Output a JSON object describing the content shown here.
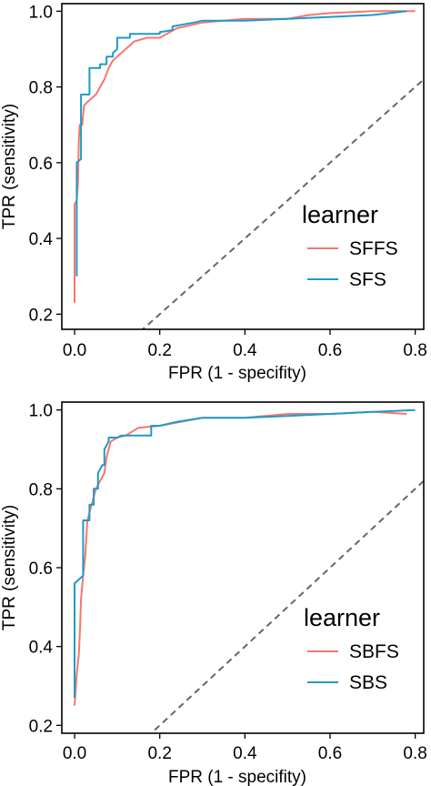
{
  "chart_data": [
    {
      "type": "line",
      "xlabel": "FPR (1 - specifity)",
      "ylabel": "TPR (sensitivity)",
      "xlim": [
        -0.03,
        0.82
      ],
      "ylim": [
        0.16,
        1.02
      ],
      "xticks": [
        "0.0",
        "0.2",
        "0.4",
        "0.6",
        "0.8"
      ],
      "yticks": [
        "0.2",
        "0.4",
        "0.6",
        "0.8",
        "1.0"
      ],
      "grid": false,
      "legend": {
        "title": "learner",
        "position": "right"
      },
      "reference_line": {
        "style": "dashed",
        "from": [
          0,
          0
        ],
        "to": [
          1,
          1
        ]
      },
      "series": [
        {
          "name": "SFFS",
          "color": "#F8766D",
          "points": [
            [
              0.0,
              0.23
            ],
            [
              0.0,
              0.49
            ],
            [
              0.005,
              0.5
            ],
            [
              0.008,
              0.55
            ],
            [
              0.01,
              0.66
            ],
            [
              0.012,
              0.7
            ],
            [
              0.018,
              0.7
            ],
            [
              0.022,
              0.75
            ],
            [
              0.03,
              0.76
            ],
            [
              0.04,
              0.77
            ],
            [
              0.05,
              0.78
            ],
            [
              0.06,
              0.8
            ],
            [
              0.07,
              0.82
            ],
            [
              0.08,
              0.85
            ],
            [
              0.09,
              0.87
            ],
            [
              0.1,
              0.88
            ],
            [
              0.12,
              0.9
            ],
            [
              0.14,
              0.92
            ],
            [
              0.17,
              0.93
            ],
            [
              0.2,
              0.93
            ],
            [
              0.24,
              0.955
            ],
            [
              0.3,
              0.97
            ],
            [
              0.4,
              0.98
            ],
            [
              0.5,
              0.98
            ],
            [
              0.55,
              0.99
            ],
            [
              0.6,
              0.995
            ],
            [
              0.7,
              1.0
            ],
            [
              0.8,
              1.0
            ]
          ]
        },
        {
          "name": "SFS",
          "color": "#1F9AC9",
          "points": [
            [
              0.005,
              0.3
            ],
            [
              0.005,
              0.6
            ],
            [
              0.015,
              0.61
            ],
            [
              0.015,
              0.78
            ],
            [
              0.035,
              0.78
            ],
            [
              0.035,
              0.85
            ],
            [
              0.06,
              0.85
            ],
            [
              0.06,
              0.86
            ],
            [
              0.075,
              0.86
            ],
            [
              0.075,
              0.88
            ],
            [
              0.09,
              0.88
            ],
            [
              0.09,
              0.89
            ],
            [
              0.1,
              0.9
            ],
            [
              0.1,
              0.93
            ],
            [
              0.13,
              0.93
            ],
            [
              0.13,
              0.94
            ],
            [
              0.2,
              0.94
            ],
            [
              0.2,
              0.945
            ],
            [
              0.23,
              0.95
            ],
            [
              0.23,
              0.96
            ],
            [
              0.28,
              0.97
            ],
            [
              0.3,
              0.975
            ],
            [
              0.4,
              0.975
            ],
            [
              0.5,
              0.98
            ],
            [
              0.6,
              0.985
            ],
            [
              0.7,
              0.99
            ],
            [
              0.78,
              1.0
            ]
          ]
        }
      ]
    },
    {
      "type": "line",
      "xlabel": "FPR (1 - specifity)",
      "ylabel": "TPR (sensitivity)",
      "xlim": [
        -0.03,
        0.82
      ],
      "ylim": [
        0.18,
        1.02
      ],
      "xticks": [
        "0.0",
        "0.2",
        "0.4",
        "0.6",
        "0.8"
      ],
      "yticks": [
        "0.2",
        "0.4",
        "0.6",
        "0.8",
        "1.0"
      ],
      "grid": false,
      "legend": {
        "title": "learner",
        "position": "right"
      },
      "reference_line": {
        "style": "dashed",
        "from": [
          0,
          0
        ],
        "to": [
          1,
          1
        ]
      },
      "series": [
        {
          "name": "SBFS",
          "color": "#F8766D",
          "points": [
            [
              0.0,
              0.25
            ],
            [
              0.005,
              0.33
            ],
            [
              0.01,
              0.38
            ],
            [
              0.013,
              0.45
            ],
            [
              0.015,
              0.52
            ],
            [
              0.02,
              0.58
            ],
            [
              0.025,
              0.63
            ],
            [
              0.03,
              0.72
            ],
            [
              0.04,
              0.76
            ],
            [
              0.05,
              0.8
            ],
            [
              0.06,
              0.82
            ],
            [
              0.07,
              0.84
            ],
            [
              0.075,
              0.88
            ],
            [
              0.085,
              0.92
            ],
            [
              0.1,
              0.93
            ],
            [
              0.12,
              0.935
            ],
            [
              0.15,
              0.955
            ],
            [
              0.2,
              0.96
            ],
            [
              0.25,
              0.97
            ],
            [
              0.3,
              0.98
            ],
            [
              0.4,
              0.98
            ],
            [
              0.5,
              0.99
            ],
            [
              0.6,
              0.99
            ],
            [
              0.7,
              0.995
            ],
            [
              0.78,
              0.99
            ]
          ]
        },
        {
          "name": "SBS",
          "color": "#1F9AC9",
          "points": [
            [
              0.0,
              0.27
            ],
            [
              0.0,
              0.56
            ],
            [
              0.02,
              0.58
            ],
            [
              0.02,
              0.72
            ],
            [
              0.035,
              0.72
            ],
            [
              0.035,
              0.76
            ],
            [
              0.045,
              0.76
            ],
            [
              0.045,
              0.8
            ],
            [
              0.055,
              0.8
            ],
            [
              0.055,
              0.84
            ],
            [
              0.065,
              0.86
            ],
            [
              0.07,
              0.86
            ],
            [
              0.07,
              0.9
            ],
            [
              0.08,
              0.92
            ],
            [
              0.08,
              0.93
            ],
            [
              0.1,
              0.93
            ],
            [
              0.11,
              0.935
            ],
            [
              0.18,
              0.935
            ],
            [
              0.18,
              0.96
            ],
            [
              0.2,
              0.96
            ],
            [
              0.24,
              0.97
            ],
            [
              0.3,
              0.98
            ],
            [
              0.4,
              0.98
            ],
            [
              0.5,
              0.985
            ],
            [
              0.6,
              0.99
            ],
            [
              0.7,
              0.995
            ],
            [
              0.8,
              1.0
            ]
          ]
        }
      ]
    }
  ]
}
